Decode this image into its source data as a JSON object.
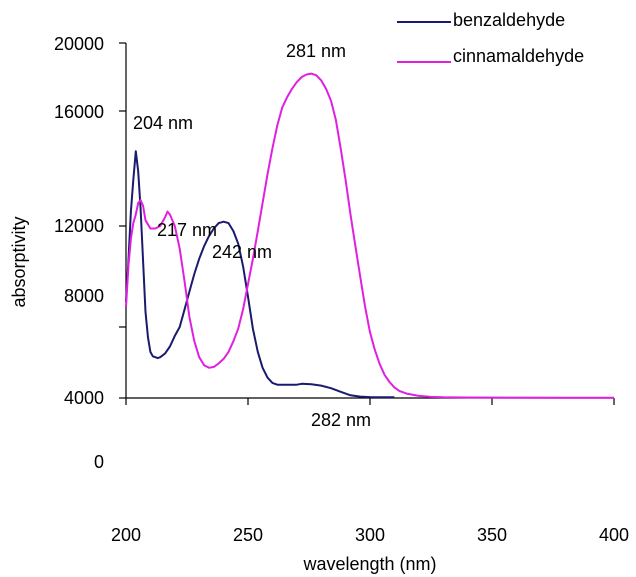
{
  "chart_data": {
    "type": "line",
    "title": "",
    "xlabel": "wavelength (nm)",
    "ylabel": "absorptivity",
    "xlim": [
      200,
      400
    ],
    "ylim": [
      4000,
      20000
    ],
    "x_ticks": [
      200,
      250,
      300,
      350,
      400
    ],
    "y_ticks": [
      4000,
      8000,
      12000,
      16000,
      20000
    ],
    "extra_y_label": "0",
    "grid": false,
    "legend_position": "top-right",
    "series": [
      {
        "name": "benzaldehyde",
        "color": "#1a1a6e",
        "points": [
          [
            200,
            9000
          ],
          [
            201,
            10600
          ],
          [
            202,
            12500
          ],
          [
            203,
            13600
          ],
          [
            204,
            14600
          ],
          [
            205,
            13900
          ],
          [
            206,
            12600
          ],
          [
            207,
            10600
          ],
          [
            208,
            8600
          ],
          [
            209,
            7400
          ],
          [
            210,
            6600
          ],
          [
            211,
            6350
          ],
          [
            212,
            6300
          ],
          [
            213,
            6250
          ],
          [
            214,
            6300
          ],
          [
            216,
            6500
          ],
          [
            218,
            6900
          ],
          [
            220,
            7500
          ],
          [
            222,
            8000
          ],
          [
            224,
            8700
          ],
          [
            226,
            9400
          ],
          [
            228,
            10100
          ],
          [
            230,
            10700
          ],
          [
            232,
            11200
          ],
          [
            234,
            11600
          ],
          [
            236,
            11900
          ],
          [
            238,
            12100
          ],
          [
            240,
            12150
          ],
          [
            242,
            12100
          ],
          [
            244,
            11800
          ],
          [
            246,
            11300
          ],
          [
            248,
            10400
          ],
          [
            250,
            9200
          ],
          [
            252,
            7900
          ],
          [
            254,
            6600
          ],
          [
            256,
            5700
          ],
          [
            258,
            5150
          ],
          [
            260,
            4850
          ],
          [
            262,
            4750
          ],
          [
            266,
            4750
          ],
          [
            270,
            4750
          ],
          [
            272,
            4800
          ],
          [
            276,
            4780
          ],
          [
            280,
            4700
          ],
          [
            284,
            4550
          ],
          [
            288,
            4350
          ],
          [
            292,
            4150
          ],
          [
            296,
            4080
          ],
          [
            300,
            4050
          ],
          [
            305,
            4040
          ],
          [
            310,
            4040
          ]
        ]
      },
      {
        "name": "cinnamaldehyde",
        "color": "#e020e0",
        "points": [
          [
            200,
            8800
          ],
          [
            201,
            10400
          ],
          [
            202,
            11500
          ],
          [
            203,
            12100
          ],
          [
            204,
            12400
          ],
          [
            205,
            12800
          ],
          [
            206,
            12900
          ],
          [
            207,
            12700
          ],
          [
            208,
            12200
          ],
          [
            210,
            11900
          ],
          [
            212,
            11900
          ],
          [
            214,
            12000
          ],
          [
            216,
            12300
          ],
          [
            217,
            12500
          ],
          [
            218,
            12400
          ],
          [
            220,
            12000
          ],
          [
            222,
            11100
          ],
          [
            224,
            9800
          ],
          [
            226,
            8400
          ],
          [
            228,
            7200
          ],
          [
            230,
            6300
          ],
          [
            232,
            5850
          ],
          [
            234,
            5700
          ],
          [
            236,
            5750
          ],
          [
            238,
            5950
          ],
          [
            240,
            6200
          ],
          [
            242,
            6600
          ],
          [
            244,
            7200
          ],
          [
            246,
            7900
          ],
          [
            248,
            8700
          ],
          [
            250,
            9700
          ],
          [
            252,
            10700
          ],
          [
            254,
            11800
          ],
          [
            256,
            12800
          ],
          [
            258,
            13800
          ],
          [
            260,
            14700
          ],
          [
            262,
            15500
          ],
          [
            264,
            16200
          ],
          [
            266,
            16800
          ],
          [
            268,
            17300
          ],
          [
            270,
            17700
          ],
          [
            272,
            18000
          ],
          [
            274,
            18150
          ],
          [
            276,
            18200
          ],
          [
            278,
            18100
          ],
          [
            280,
            17800
          ],
          [
            282,
            17300
          ],
          [
            284,
            16600
          ],
          [
            286,
            15700
          ],
          [
            288,
            14700
          ],
          [
            290,
            13600
          ],
          [
            292,
            12400
          ],
          [
            294,
            11200
          ],
          [
            296,
            10000
          ],
          [
            298,
            8800
          ],
          [
            300,
            7700
          ],
          [
            302,
            6700
          ],
          [
            304,
            5900
          ],
          [
            306,
            5300
          ],
          [
            308,
            4900
          ],
          [
            310,
            4600
          ],
          [
            312,
            4400
          ],
          [
            315,
            4250
          ],
          [
            320,
            4120
          ],
          [
            325,
            4060
          ],
          [
            330,
            4040
          ],
          [
            340,
            4030
          ],
          [
            360,
            4020
          ],
          [
            380,
            4010
          ],
          [
            400,
            4010
          ]
        ]
      }
    ],
    "annotations": [
      "204 nm",
      "217 nm",
      "242 nm",
      "281 nm",
      "282 nm"
    ]
  }
}
